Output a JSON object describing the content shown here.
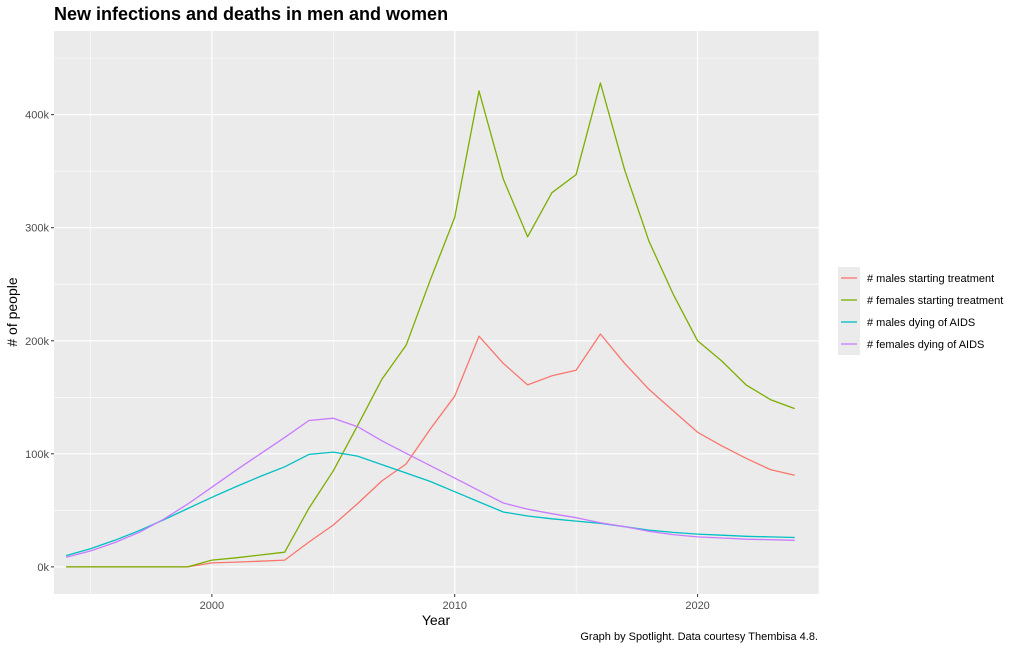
{
  "chart_data": {
    "type": "line",
    "title": "New infections and deaths in men and women",
    "xlabel": "Year",
    "ylabel": "# of people",
    "caption": "Graph by Spotlight. Data courtesy Thembisa 4.8.",
    "xlim": [
      1993.5,
      2025.0
    ],
    "ylim": [
      -24000,
      474000
    ],
    "x_ticks": [
      2000,
      2010,
      2020
    ],
    "x_tick_labels": [
      "2000",
      "2010",
      "2020"
    ],
    "y_ticks": [
      0,
      100000,
      200000,
      300000,
      400000
    ],
    "y_tick_labels": [
      "0k",
      "100k",
      "200k",
      "300k",
      "400k"
    ],
    "grid": true,
    "legend_position": "right",
    "x": [
      1994,
      1995,
      1996,
      1997,
      1998,
      1999,
      2000,
      2001,
      2002,
      2003,
      2004,
      2005,
      2006,
      2007,
      2008,
      2009,
      2010,
      2011,
      2012,
      2013,
      2014,
      2015,
      2016,
      2017,
      2018,
      2019,
      2020,
      2021,
      2022,
      2023,
      2024
    ],
    "series": [
      {
        "name": "# males starting treatment",
        "color": "#F8766D",
        "values": [
          0,
          0,
          0,
          0,
          0,
          0,
          3500,
          4200,
          5000,
          6000,
          22000,
          37000,
          56000,
          76000,
          91000,
          122000,
          151000,
          204000,
          180000,
          161000,
          169000,
          174000,
          206000,
          180000,
          157000,
          138000,
          119000,
          107000,
          96000,
          86000,
          81000
        ]
      },
      {
        "name": "# females starting treatment",
        "color": "#7CAE00",
        "values": [
          0,
          0,
          0,
          0,
          0,
          0,
          6000,
          8000,
          10500,
          13000,
          52000,
          85000,
          125000,
          166000,
          196000,
          254000,
          309000,
          421000,
          343000,
          292000,
          331000,
          347000,
          428000,
          351000,
          288000,
          241000,
          200000,
          182000,
          161000,
          148000,
          140000
        ]
      },
      {
        "name": "# males dying of AIDS",
        "color": "#00BFC4",
        "values": [
          10000,
          16000,
          23500,
          32000,
          41500,
          51500,
          61500,
          71000,
          80000,
          88500,
          99500,
          101500,
          98000,
          90500,
          83000,
          75500,
          66500,
          57500,
          48500,
          45000,
          42500,
          40500,
          38500,
          35500,
          32500,
          30500,
          29000,
          28000,
          27000,
          26500,
          26000
        ]
      },
      {
        "name": "# females dying of AIDS",
        "color": "#C77CFF",
        "values": [
          8500,
          14000,
          21500,
          30500,
          42000,
          55500,
          70500,
          85500,
          100000,
          114500,
          129500,
          131500,
          124000,
          111500,
          100500,
          89500,
          78500,
          67500,
          56500,
          51000,
          47000,
          43500,
          39000,
          35500,
          31500,
          28500,
          26500,
          25500,
          24500,
          24000,
          23500
        ]
      }
    ]
  }
}
